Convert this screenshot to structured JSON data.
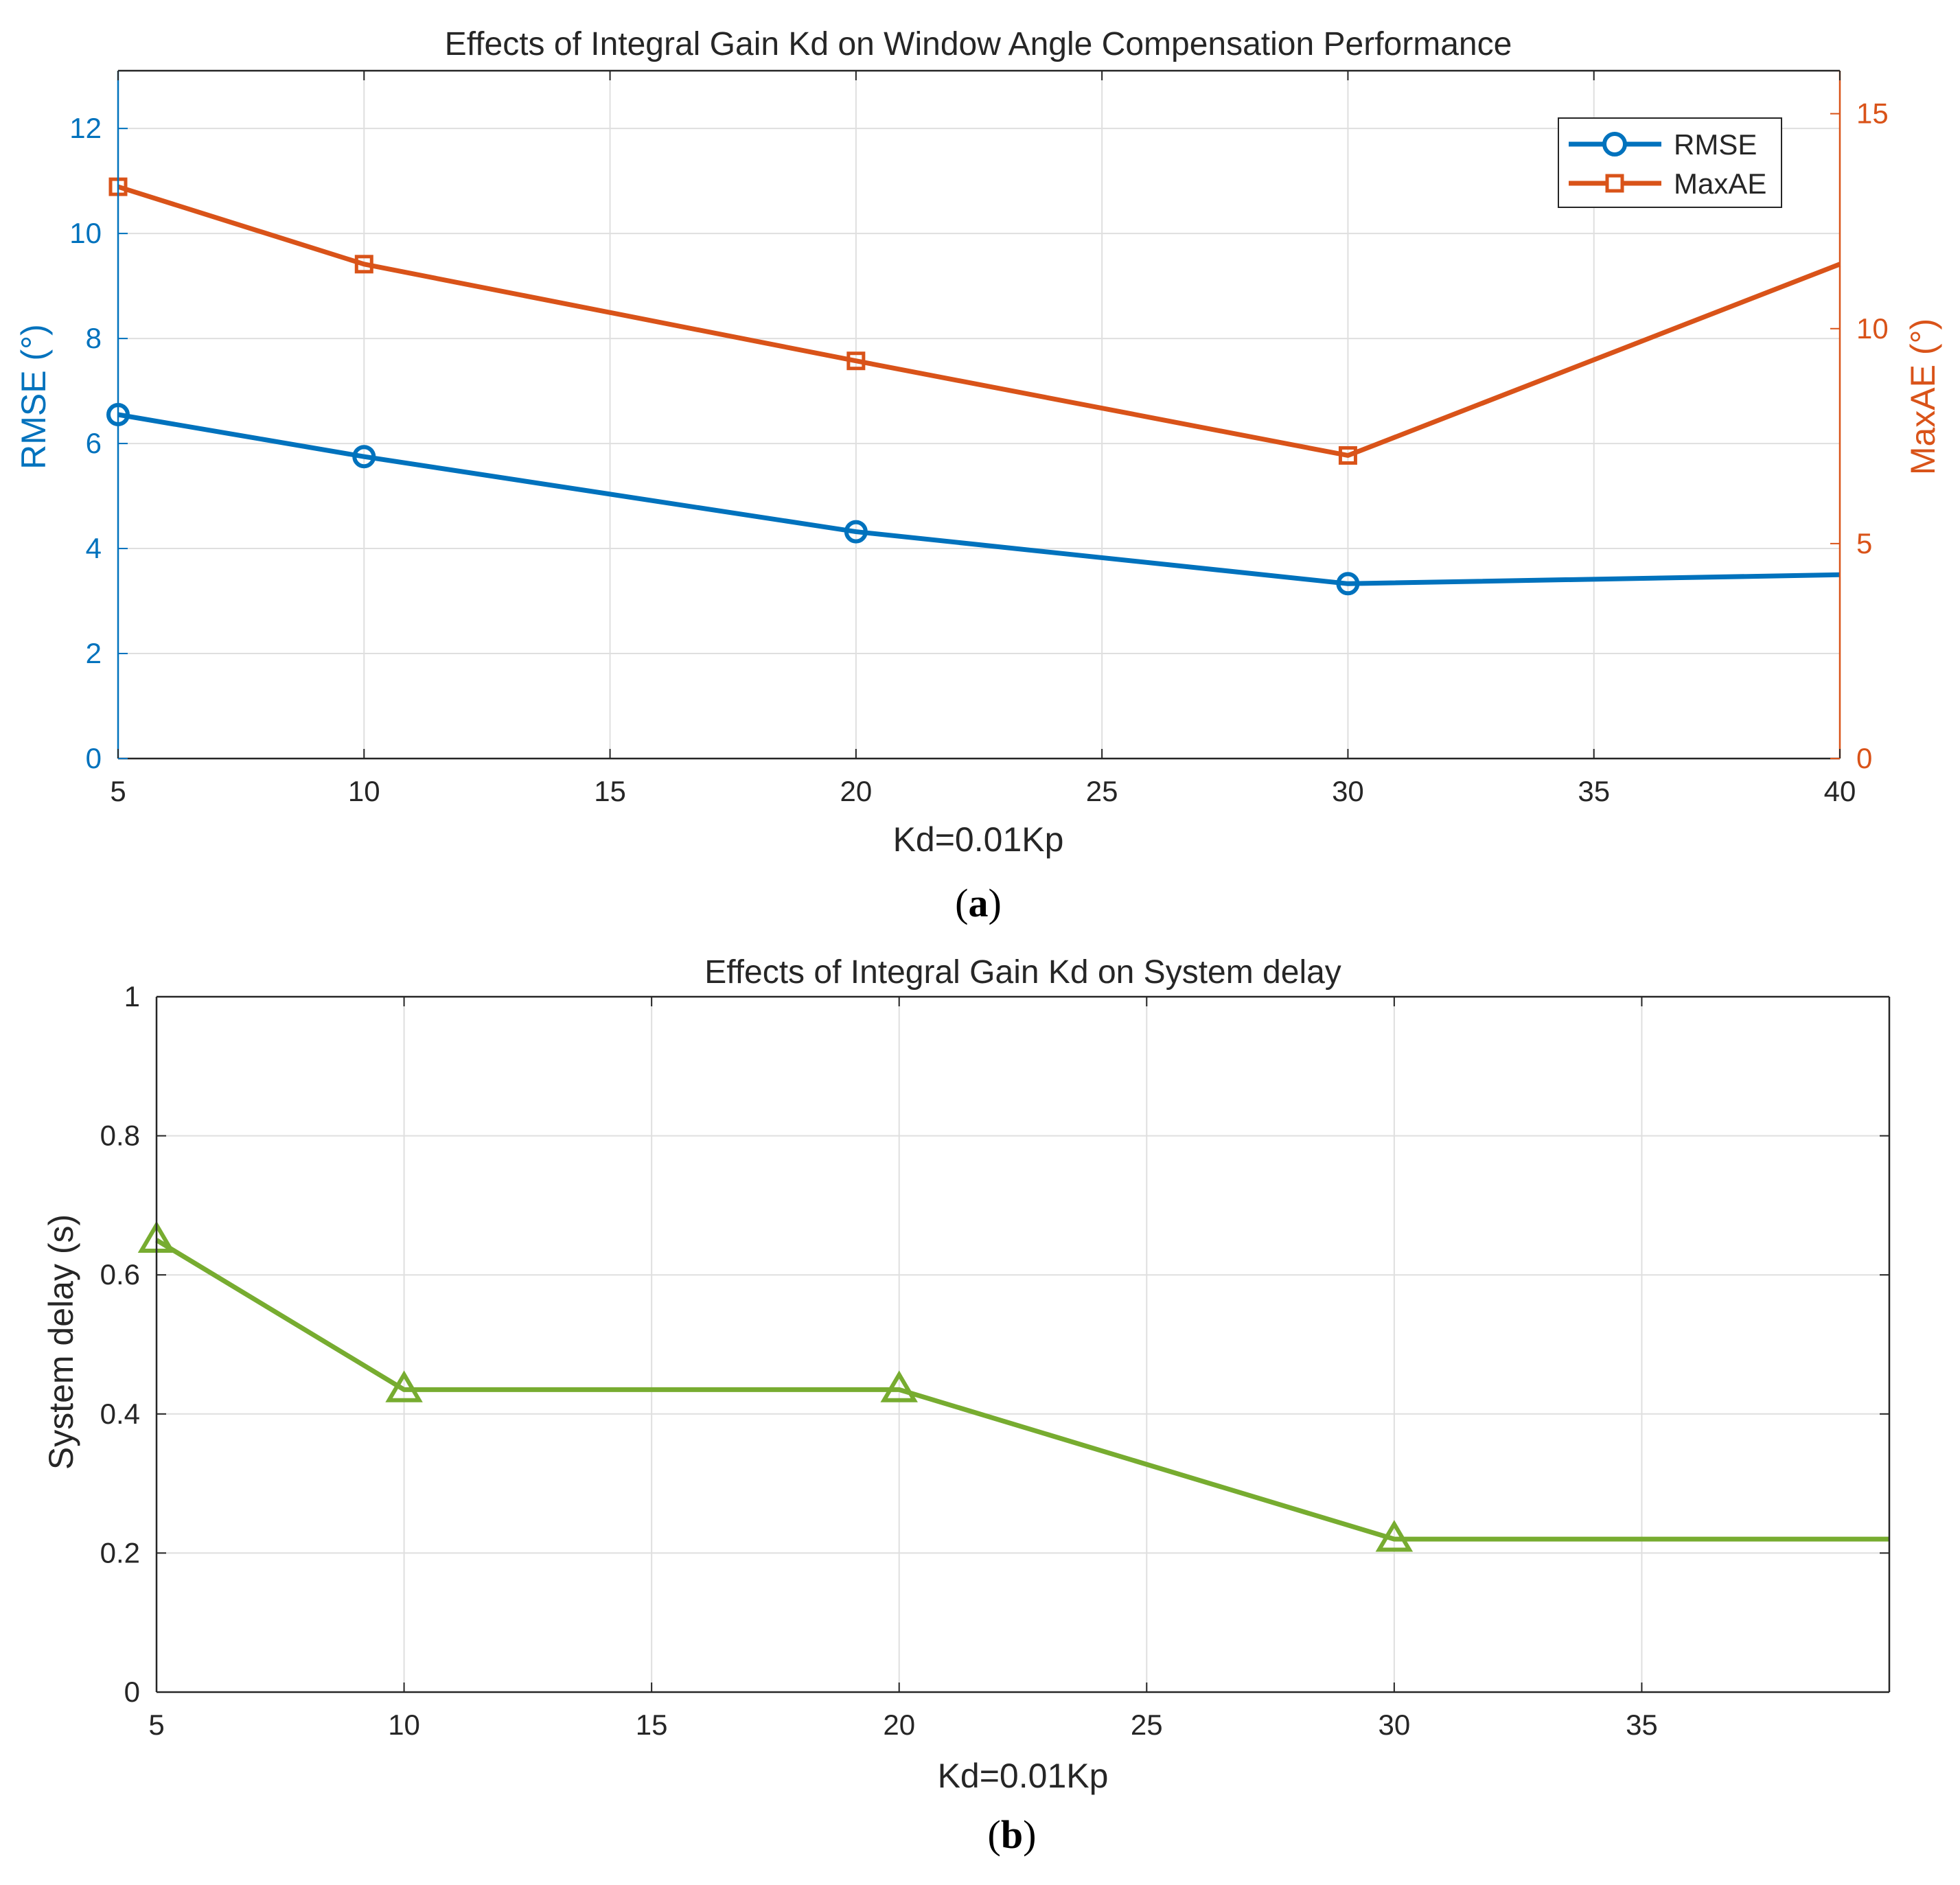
{
  "colors": {
    "rmse": "#0072BD",
    "maxae": "#D95319",
    "delay": "#77AC30",
    "axis_dark": "#262626",
    "grid": "#DFDFDF",
    "text": "#262626"
  },
  "chart_data": [
    {
      "id": "a",
      "type": "line",
      "panel_label": "a",
      "title": "Effects of Integral Gain Kd on Window Angle Compensation Performance",
      "xlabel": "Kd=0.01Kp",
      "x": [
        5,
        10,
        20,
        30,
        40
      ],
      "xlim": [
        5,
        40
      ],
      "xticks": [
        5,
        10,
        15,
        20,
        25,
        30,
        35,
        40
      ],
      "grid": true,
      "legend_position": "top-right",
      "axes": {
        "left": {
          "label": "RMSE (°)",
          "ylim": [
            0,
            13.1
          ],
          "ticks": [
            0,
            2,
            4,
            6,
            8,
            10,
            12
          ],
          "color_key": "rmse"
        },
        "right": {
          "label": "MaxAE (°)",
          "ylim": [
            0,
            16.0
          ],
          "ticks": [
            0,
            5,
            10,
            15
          ],
          "color_key": "maxae"
        }
      },
      "series": [
        {
          "name": "RMSE",
          "axis": "left",
          "marker": "circle",
          "color_key": "rmse",
          "marker_count": 4,
          "values": [
            6.55,
            5.75,
            4.32,
            3.33,
            3.5
          ]
        },
        {
          "name": "MaxAE",
          "axis": "right",
          "marker": "square",
          "color_key": "maxae",
          "marker_count": 4,
          "values": [
            13.3,
            11.5,
            9.25,
            7.05,
            11.5
          ]
        }
      ]
    },
    {
      "id": "b",
      "type": "line",
      "panel_label": "b",
      "title": "Effects of Integral Gain Kd on System delay",
      "xlabel": "Kd=0.01Kp",
      "x": [
        5,
        10,
        20,
        30,
        40
      ],
      "xlim": [
        5,
        40
      ],
      "xticks": [
        5,
        10,
        15,
        20,
        25,
        30,
        35
      ],
      "grid": true,
      "axes": {
        "left": {
          "label": "System delay (s)",
          "ylim": [
            0,
            1
          ],
          "ticks": [
            0,
            0.2,
            0.4,
            0.6,
            0.8,
            1
          ],
          "color_key": "axis_dark"
        }
      },
      "series": [
        {
          "name": "System delay",
          "axis": "left",
          "marker": "triangle",
          "color_key": "delay",
          "marker_count": 4,
          "values": [
            0.65,
            0.435,
            0.435,
            0.22,
            0.22
          ]
        }
      ]
    }
  ]
}
